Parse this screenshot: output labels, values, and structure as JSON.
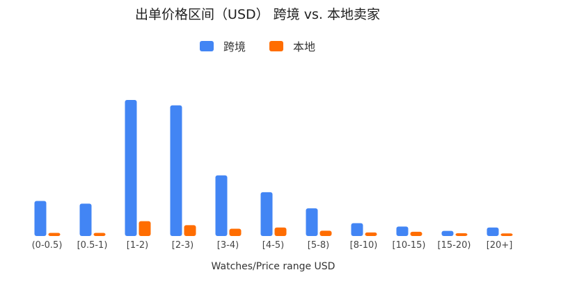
{
  "chart_data": {
    "type": "bar",
    "title": "出单价格区间（USD） 跨境 vs. 本地卖家",
    "xlabel": "Watches/Price range USD",
    "ylabel": "",
    "categories": [
      "(0-0.5)",
      "[0.5-1)",
      "[1-2)",
      "[2-3)",
      "[3-4)",
      "[4-5)",
      "[5-8)",
      "[8-10)",
      "[10-15)",
      "[15-20)",
      "[20+]"
    ],
    "series": [
      {
        "name": "跨境",
        "color": "#4285f4",
        "values": [
          25,
          23,
          100,
          96,
          44,
          31.5,
          19.5,
          8.5,
          6,
          2.8,
          5.3
        ]
      },
      {
        "name": "本地",
        "color": "#ff6d01",
        "values": [
          1.3,
          1.3,
          10,
          7,
          4.4,
          5.3,
          2.9,
          1.6,
          2.1,
          1,
          0.9
        ]
      }
    ],
    "ylim": [
      0,
      100
    ],
    "grid": false,
    "legend_position": "top"
  }
}
